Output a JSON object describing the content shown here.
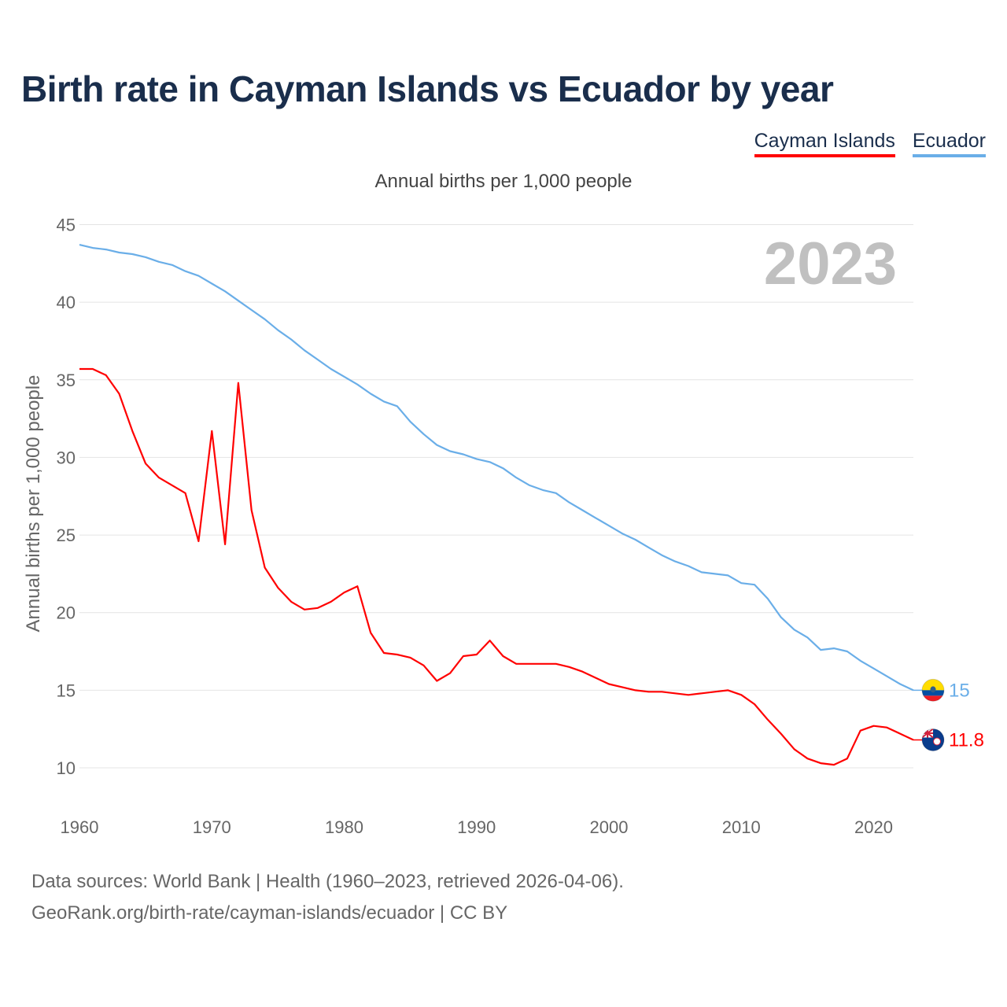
{
  "title": "Birth rate in Cayman Islands vs Ecuador by year",
  "legend": [
    {
      "label": "Cayman Islands",
      "color": "#ff0000"
    },
    {
      "label": "Ecuador",
      "color": "#6aaee8"
    }
  ],
  "subtitle": "Annual births per 1,000 people",
  "footer": {
    "line1": "Data sources: World Bank | Health (1960–2023, retrieved 2026-04-06).",
    "line2": "GeoRank.org/birth-rate/cayman-islands/ecuador | CC BY"
  },
  "chart_data": {
    "type": "line",
    "title": "Birth rate in Cayman Islands vs Ecuador by year",
    "ylabel": "Annual births per 1,000 people",
    "xlabel": "",
    "year_label": "2023",
    "xlim": [
      1960,
      2023
    ],
    "ylim": [
      7.5,
      45.5
    ],
    "yticks": [
      10,
      15,
      20,
      25,
      30,
      35,
      40,
      45
    ],
    "xticks": [
      1960,
      1970,
      1980,
      1990,
      2000,
      2010,
      2020
    ],
    "grid": true,
    "x": [
      1960,
      1961,
      1962,
      1963,
      1964,
      1965,
      1966,
      1967,
      1968,
      1969,
      1970,
      1971,
      1972,
      1973,
      1974,
      1975,
      1976,
      1977,
      1978,
      1979,
      1980,
      1981,
      1982,
      1983,
      1984,
      1985,
      1986,
      1987,
      1988,
      1989,
      1990,
      1991,
      1992,
      1993,
      1994,
      1995,
      1996,
      1997,
      1998,
      1999,
      2000,
      2001,
      2002,
      2003,
      2004,
      2005,
      2006,
      2007,
      2008,
      2009,
      2010,
      2011,
      2012,
      2013,
      2014,
      2015,
      2016,
      2017,
      2018,
      2019,
      2020,
      2021,
      2022,
      2023
    ],
    "series": [
      {
        "name": "Cayman Islands",
        "color": "#ff0000",
        "end_label": "11.8",
        "flag": "cayman-islands-flag-icon",
        "values": [
          35.7,
          35.7,
          35.3,
          34.1,
          31.7,
          29.6,
          28.7,
          28.2,
          27.7,
          24.6,
          31.7,
          24.4,
          34.8,
          26.6,
          22.9,
          21.6,
          20.7,
          20.2,
          20.3,
          20.7,
          21.3,
          21.7,
          18.7,
          17.4,
          17.3,
          17.1,
          16.6,
          15.6,
          16.1,
          17.2,
          17.3,
          18.2,
          17.2,
          16.7,
          16.7,
          16.7,
          16.7,
          16.5,
          16.2,
          15.8,
          15.4,
          15.2,
          15.0,
          14.9,
          14.9,
          14.8,
          14.7,
          14.8,
          14.9,
          15.0,
          14.7,
          14.1,
          13.1,
          12.2,
          11.2,
          10.6,
          10.3,
          10.2,
          10.6,
          12.4,
          12.7,
          12.6,
          12.2,
          11.8
        ]
      },
      {
        "name": "Ecuador",
        "color": "#6aaee8",
        "end_label": "15",
        "flag": "ecuador-flag-icon",
        "values": [
          43.7,
          43.5,
          43.4,
          43.2,
          43.1,
          42.9,
          42.6,
          42.4,
          42.0,
          41.7,
          41.2,
          40.7,
          40.1,
          39.5,
          38.9,
          38.2,
          37.6,
          36.9,
          36.3,
          35.7,
          35.2,
          34.7,
          34.1,
          33.6,
          33.3,
          32.3,
          31.5,
          30.8,
          30.4,
          30.2,
          29.9,
          29.7,
          29.3,
          28.7,
          28.2,
          27.9,
          27.7,
          27.1,
          26.6,
          26.1,
          25.6,
          25.1,
          24.7,
          24.2,
          23.7,
          23.3,
          23.0,
          22.6,
          22.5,
          22.4,
          21.9,
          21.8,
          20.9,
          19.7,
          18.9,
          18.4,
          17.6,
          17.7,
          17.5,
          16.9,
          16.4,
          15.9,
          15.4,
          15.0
        ]
      }
    ]
  }
}
